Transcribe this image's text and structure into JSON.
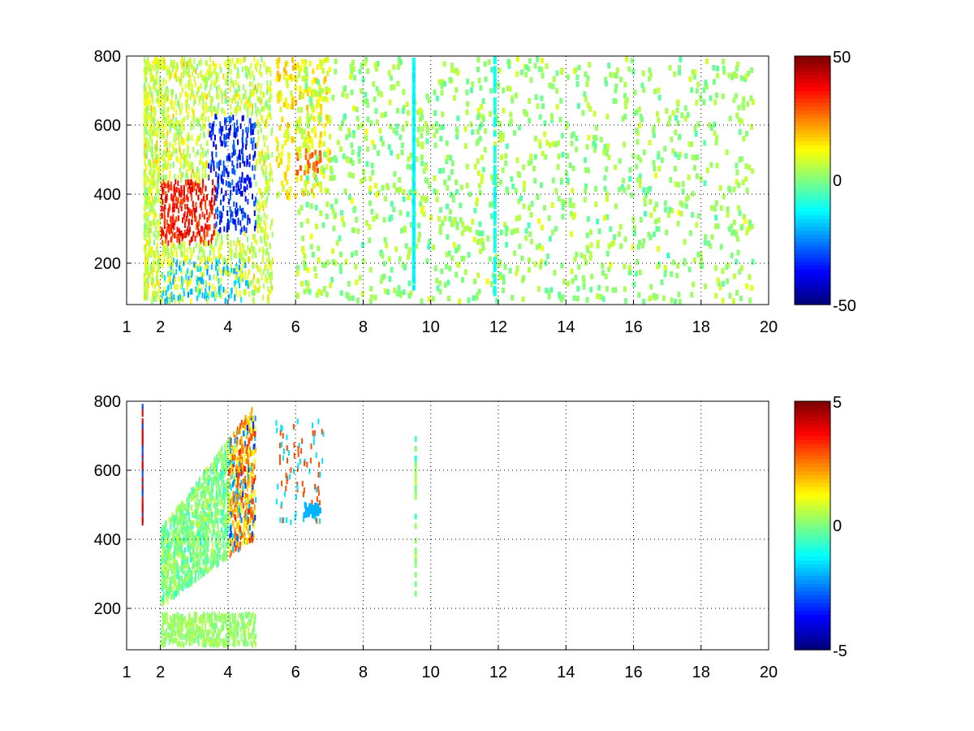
{
  "chart_data": [
    {
      "type": "heatmap",
      "title": "",
      "xlabel": "",
      "ylabel": "",
      "xlim": [
        1,
        20
      ],
      "ylim": [
        80,
        800
      ],
      "x_ticks": [
        "1",
        "2",
        "4",
        "6",
        "8",
        "10",
        "12",
        "14",
        "16",
        "18",
        "20"
      ],
      "y_ticks": [
        "200",
        "400",
        "600",
        "800"
      ],
      "grid": true,
      "colormap": "jet",
      "clim": [
        -50,
        50
      ],
      "colorbar_ticks": [
        "50",
        "0",
        "-50"
      ],
      "features": [
        {
          "x": [
            2.0,
            3.5
          ],
          "y": [
            260,
            420
          ],
          "value": 35
        },
        {
          "x": [
            3.5,
            4.8
          ],
          "y": [
            300,
            600
          ],
          "value": -40
        },
        {
          "x": [
            2.0,
            4.6
          ],
          "y": [
            80,
            200
          ],
          "value": -15
        },
        {
          "x": [
            5.5,
            6.0
          ],
          "y": [
            420,
            560
          ],
          "value": 20
        },
        {
          "x": [
            6.0,
            6.8
          ],
          "y": [
            440,
            520
          ],
          "value": 35
        },
        {
          "x": [
            1.5,
            10.0
          ],
          "y": [
            80,
            800
          ],
          "value": 5
        }
      ]
    },
    {
      "type": "heatmap",
      "title": "",
      "xlabel": "",
      "ylabel": "",
      "xlim": [
        1,
        20
      ],
      "ylim": [
        80,
        800
      ],
      "x_ticks": [
        "1",
        "2",
        "4",
        "6",
        "8",
        "10",
        "12",
        "14",
        "16",
        "18",
        "20"
      ],
      "y_ticks": [
        "200",
        "400",
        "600",
        "800"
      ],
      "grid": true,
      "colormap": "jet",
      "clim": [
        -5,
        5
      ],
      "colorbar_ticks": [
        "5",
        "0",
        "-5"
      ],
      "features": [
        {
          "x": [
            2.0,
            4.0
          ],
          "y": [
            200,
            420
          ],
          "value": 0
        },
        {
          "x": [
            4.0,
            5.2
          ],
          "y": [
            380,
            560
          ],
          "value": 3
        },
        {
          "x": [
            6.2,
            6.7
          ],
          "y": [
            460,
            490
          ],
          "value": -2
        },
        {
          "x": [
            2.0,
            4.6
          ],
          "y": [
            80,
            170
          ],
          "value": 0
        },
        {
          "x": [
            9.5,
            9.6
          ],
          "y": [
            220,
            680
          ],
          "value": 1
        }
      ]
    }
  ]
}
